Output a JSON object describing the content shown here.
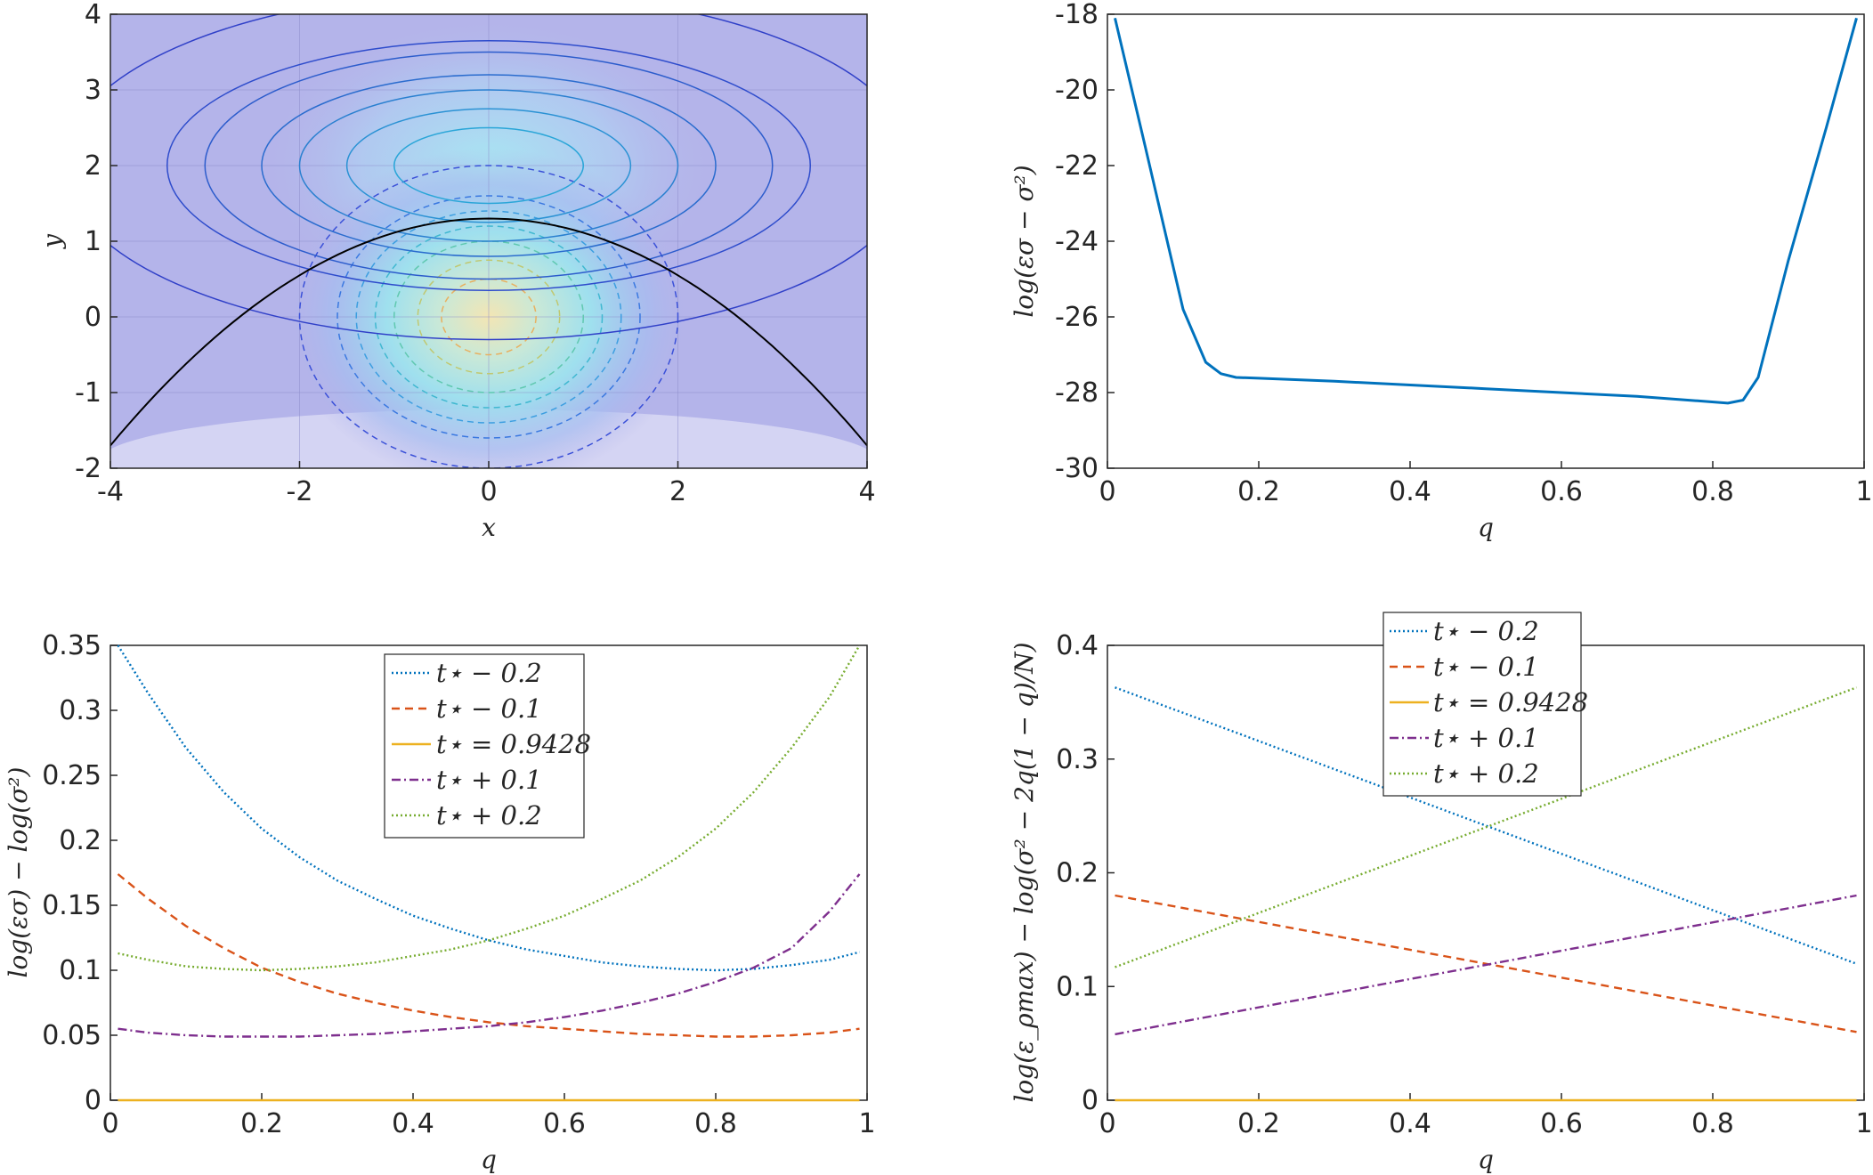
{
  "chart_data": [
    {
      "type": "contour",
      "title": "",
      "xlabel": "x",
      "ylabel": "y",
      "xlim": [
        -4,
        4
      ],
      "ylim": [
        -2,
        4
      ],
      "xticks": [
        "-4",
        "-2",
        "0",
        "2",
        "4"
      ],
      "yticks": [
        "-2",
        "-1",
        "0",
        "1",
        "2",
        "3",
        "4"
      ],
      "grid": true,
      "solid_ellipses": {
        "center": [
          0,
          2
        ],
        "rx": [
          1.0,
          1.5,
          2.0,
          2.4,
          3.0,
          3.4,
          4.5
        ],
        "ry": [
          0.5,
          0.75,
          1.0,
          1.2,
          1.5,
          1.65,
          2.3
        ]
      },
      "dashed_circles": {
        "center": [
          0,
          0
        ],
        "r": [
          0.5,
          0.75,
          1.0,
          1.2,
          1.4,
          1.6,
          2.0
        ]
      },
      "parabola": {
        "vertex_x": 0,
        "vertex_y": 1.3,
        "at_x_minus_4": -1.7,
        "at_x_plus_4": -1.7
      }
    },
    {
      "type": "line",
      "title": "",
      "xlabel": "q",
      "ylabel": "log(εσ − σ²)",
      "xlim": [
        0,
        1
      ],
      "ylim": [
        -30,
        -18
      ],
      "xticks": [
        "0",
        "0.2",
        "0.4",
        "0.6",
        "0.8",
        "1"
      ],
      "yticks": [
        "-30",
        "-28",
        "-26",
        "-24",
        "-22",
        "-20",
        "-18"
      ],
      "series": [
        {
          "name": "log(εσ − σ²)",
          "color": "#0072bd",
          "style": "solid",
          "x": [
            0.01,
            0.05,
            0.1,
            0.13,
            0.15,
            0.17,
            0.2,
            0.3,
            0.4,
            0.5,
            0.6,
            0.7,
            0.78,
            0.82,
            0.84,
            0.86,
            0.9,
            0.95,
            0.99
          ],
          "y": [
            -18.1,
            -21.5,
            -25.8,
            -27.2,
            -27.5,
            -27.6,
            -27.62,
            -27.7,
            -27.8,
            -27.9,
            -28.0,
            -28.1,
            -28.22,
            -28.28,
            -28.2,
            -27.6,
            -24.5,
            -21.0,
            -18.1
          ]
        }
      ]
    },
    {
      "type": "line",
      "title": "",
      "xlabel": "q",
      "ylabel": "log(εσ) − log(σ²)",
      "xlim": [
        0,
        1
      ],
      "ylim": [
        0,
        0.35
      ],
      "xticks": [
        "0",
        "0.2",
        "0.4",
        "0.6",
        "0.8",
        "1"
      ],
      "yticks": [
        "0",
        "0.05",
        "0.1",
        "0.15",
        "0.2",
        "0.25",
        "0.3",
        "0.35"
      ],
      "legend_position": "top-center",
      "series": [
        {
          "name": "t⋆ − 0.2",
          "color": "#0072bd",
          "style": "dotted",
          "x": [
            0.01,
            0.05,
            0.1,
            0.15,
            0.2,
            0.25,
            0.3,
            0.35,
            0.4,
            0.45,
            0.5,
            0.55,
            0.6,
            0.65,
            0.7,
            0.75,
            0.8,
            0.85,
            0.9,
            0.95,
            0.99
          ],
          "y": [
            0.35,
            0.313,
            0.271,
            0.237,
            0.209,
            0.187,
            0.169,
            0.155,
            0.142,
            0.132,
            0.123,
            0.116,
            0.111,
            0.106,
            0.103,
            0.101,
            0.1,
            0.101,
            0.104,
            0.108,
            0.114
          ]
        },
        {
          "name": "t⋆ − 0.1",
          "color": "#d95319",
          "style": "dashed",
          "x": [
            0.01,
            0.05,
            0.1,
            0.15,
            0.2,
            0.25,
            0.3,
            0.35,
            0.4,
            0.45,
            0.5,
            0.55,
            0.6,
            0.65,
            0.7,
            0.75,
            0.8,
            0.85,
            0.9,
            0.95,
            0.99
          ],
          "y": [
            0.174,
            0.155,
            0.134,
            0.117,
            0.102,
            0.091,
            0.082,
            0.075,
            0.069,
            0.064,
            0.06,
            0.057,
            0.055,
            0.053,
            0.051,
            0.05,
            0.049,
            0.049,
            0.05,
            0.052,
            0.055
          ]
        },
        {
          "name": "t⋆ = 0.9428",
          "color": "#edb120",
          "style": "solid",
          "x": [
            0.01,
            0.99
          ],
          "y": [
            0,
            0
          ]
        },
        {
          "name": "t⋆ + 0.1",
          "color": "#7e2f8e",
          "style": "dashdot",
          "x": [
            0.01,
            0.05,
            0.1,
            0.15,
            0.2,
            0.25,
            0.3,
            0.35,
            0.4,
            0.45,
            0.5,
            0.55,
            0.6,
            0.65,
            0.7,
            0.75,
            0.8,
            0.85,
            0.9,
            0.95,
            0.99
          ],
          "y": [
            0.055,
            0.052,
            0.05,
            0.049,
            0.049,
            0.049,
            0.05,
            0.051,
            0.053,
            0.055,
            0.057,
            0.06,
            0.064,
            0.069,
            0.075,
            0.082,
            0.091,
            0.102,
            0.117,
            0.145,
            0.174
          ]
        },
        {
          "name": "t⋆ + 0.2",
          "color": "#77ac30",
          "style": "dotted",
          "x": [
            0.01,
            0.05,
            0.1,
            0.15,
            0.2,
            0.25,
            0.3,
            0.35,
            0.4,
            0.45,
            0.5,
            0.55,
            0.6,
            0.65,
            0.7,
            0.75,
            0.8,
            0.85,
            0.9,
            0.95,
            0.99
          ],
          "y": [
            0.113,
            0.108,
            0.103,
            0.101,
            0.1,
            0.101,
            0.103,
            0.106,
            0.111,
            0.116,
            0.123,
            0.132,
            0.142,
            0.155,
            0.169,
            0.187,
            0.209,
            0.237,
            0.271,
            0.31,
            0.35
          ]
        }
      ]
    },
    {
      "type": "line",
      "title": "",
      "xlabel": "q",
      "ylabel": "log(ε_ρmax) − log(σ² − 2q(1 − q)/N)",
      "xlim": [
        0,
        1
      ],
      "ylim": [
        0,
        0.4
      ],
      "xticks": [
        "0",
        "0.2",
        "0.4",
        "0.6",
        "0.8",
        "1"
      ],
      "yticks": [
        "0",
        "0.1",
        "0.2",
        "0.3",
        "0.4"
      ],
      "legend_position": "top-center",
      "series": [
        {
          "name": "t⋆ − 0.2",
          "color": "#0072bd",
          "style": "dotted",
          "x": [
            0.01,
            0.99
          ],
          "y": [
            0.363,
            0.12
          ]
        },
        {
          "name": "t⋆ − 0.1",
          "color": "#d95319",
          "style": "dashed",
          "x": [
            0.01,
            0.99
          ],
          "y": [
            0.18,
            0.06
          ]
        },
        {
          "name": "t⋆ = 0.9428",
          "color": "#edb120",
          "style": "solid",
          "x": [
            0.01,
            0.99
          ],
          "y": [
            0,
            0
          ]
        },
        {
          "name": "t⋆ + 0.1",
          "color": "#7e2f8e",
          "style": "dashdot",
          "x": [
            0.01,
            0.99
          ],
          "y": [
            0.058,
            0.18
          ]
        },
        {
          "name": "t⋆ + 0.2",
          "color": "#77ac30",
          "style": "dotted",
          "x": [
            0.01,
            0.99
          ],
          "y": [
            0.117,
            0.363
          ]
        }
      ]
    }
  ]
}
